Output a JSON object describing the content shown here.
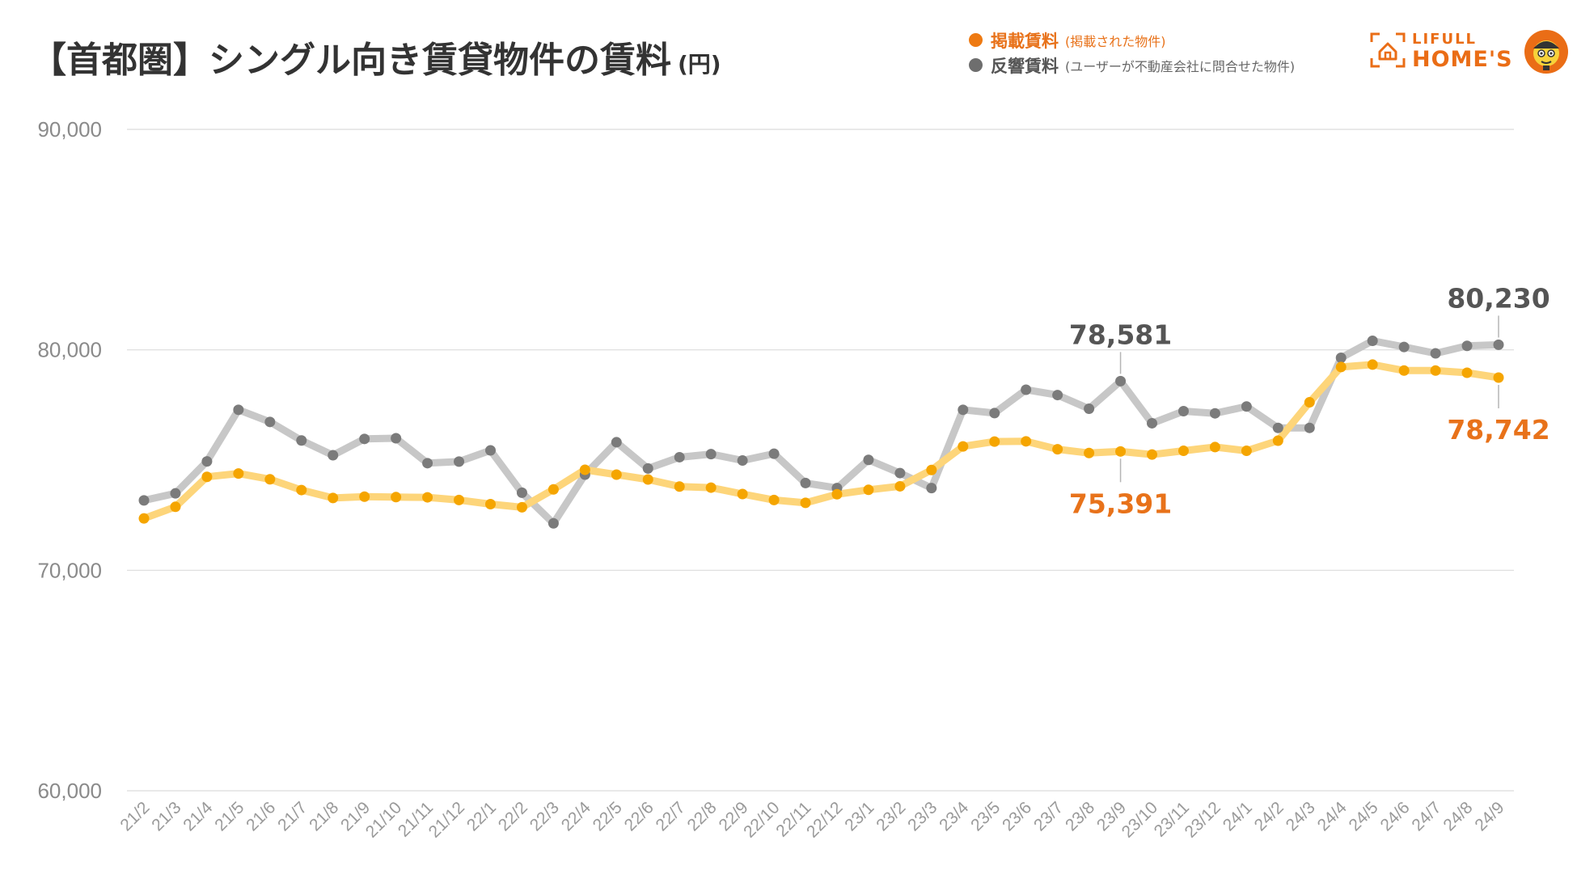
{
  "title": "【首都圏】シングル向き賃貸物件の賃料",
  "title_unit": "(円)",
  "legend": [
    {
      "name": "掲載賃料",
      "note": "(掲載された物件)",
      "color": "#ee7a12"
    },
    {
      "name": "反響賃料",
      "note": "(ユーザーが不動産会社に問合せた物件)",
      "color": "#6e6e6e"
    }
  ],
  "brand": {
    "top": "LIFULL",
    "main": "HOME'S",
    "color": "#ea6d16",
    "icon": "house-icon",
    "mascot": "mascot-icon"
  },
  "chart_data": {
    "type": "line",
    "ylim": [
      60000,
      90000
    ],
    "yticks": [
      60000,
      70000,
      80000,
      90000
    ],
    "ytick_labels": [
      "60,000",
      "70,000",
      "80,000",
      "90,000"
    ],
    "categories": [
      "21/2",
      "21/3",
      "21/4",
      "21/5",
      "21/6",
      "21/7",
      "21/8",
      "21/9",
      "21/10",
      "21/11",
      "21/12",
      "22/1",
      "22/2",
      "22/3",
      "22/4",
      "22/5",
      "22/6",
      "22/7",
      "22/8",
      "22/9",
      "22/10",
      "22/11",
      "22/12",
      "23/1",
      "23/2",
      "23/3",
      "23/4",
      "23/5",
      "23/6",
      "23/7",
      "23/8",
      "23/9",
      "23/10",
      "23/11",
      "23/12",
      "24/1",
      "24/2",
      "24/3",
      "24/4",
      "24/5",
      "24/6",
      "24/7",
      "24/8",
      "24/9"
    ],
    "series": [
      {
        "name": "掲載賃料",
        "line_color": "#fdd57a",
        "marker_color": "#f5a500",
        "values": [
          72353,
          72880,
          74240,
          74390,
          74130,
          73640,
          73280,
          73340,
          73320,
          73310,
          73190,
          73000,
          72860,
          73670,
          74560,
          74340,
          74120,
          73800,
          73750,
          73460,
          73190,
          73060,
          73450,
          73650,
          73810,
          74550,
          75620,
          75840,
          75850,
          75490,
          75320,
          75391,
          75250,
          75420,
          75590,
          75420,
          75880,
          77620,
          79220,
          79330,
          79060,
          79060,
          78960,
          78742
        ]
      },
      {
        "name": "反響賃料",
        "line_color": "#c7c7c7",
        "marker_color": "#7b7b7b",
        "values": [
          73170,
          73490,
          74940,
          77280,
          76730,
          75890,
          75220,
          75960,
          75990,
          74860,
          74930,
          75440,
          73520,
          72130,
          74340,
          75810,
          74620,
          75130,
          75270,
          74980,
          75290,
          73960,
          73730,
          75010,
          74410,
          73730,
          77280,
          77130,
          78190,
          77950,
          77330,
          78581,
          76670,
          77220,
          77120,
          77430,
          76460,
          76460,
          79640,
          80410,
          80130,
          79840,
          80180,
          80230
        ]
      }
    ],
    "annotations": [
      {
        "series": 1,
        "index": 31,
        "text": "78,581",
        "color": "#555555",
        "position": "above"
      },
      {
        "series": 0,
        "index": 31,
        "text": "75,391",
        "color": "#e8721a",
        "position": "below"
      },
      {
        "series": 1,
        "index": 43,
        "text": "80,230",
        "color": "#555555",
        "position": "above"
      },
      {
        "series": 0,
        "index": 43,
        "text": "78,742",
        "color": "#e8721a",
        "position": "below"
      }
    ],
    "grid": true,
    "legend_position": "top-right"
  }
}
